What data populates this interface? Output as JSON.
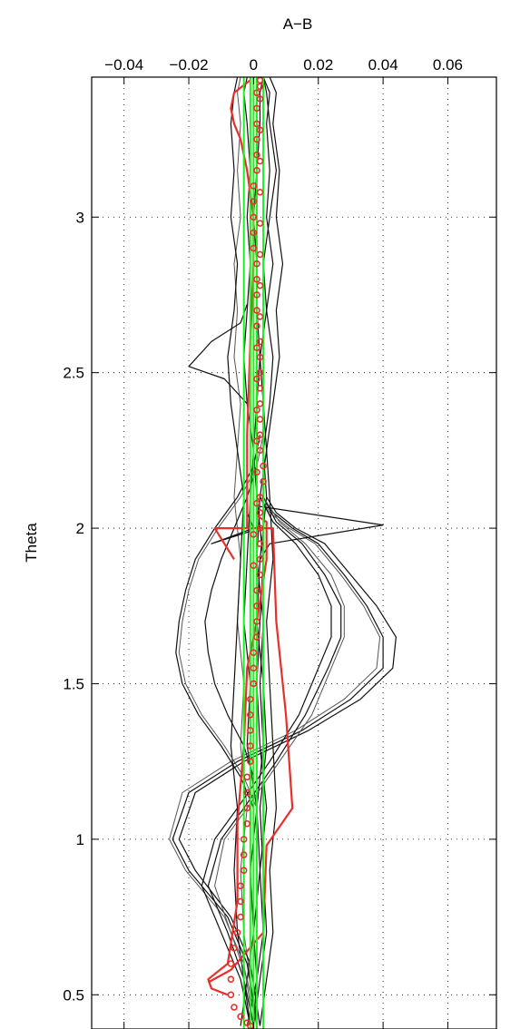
{
  "chart_data": {
    "type": "line",
    "title": "",
    "xlabel": "A−B",
    "ylabel": "Theta",
    "xlim": [
      -0.05,
      0.075
    ],
    "ylim": [
      0.39,
      3.45
    ],
    "x_ticks": [
      -0.04,
      -0.02,
      0,
      0.02,
      0.04,
      0.06
    ],
    "x_tick_labels": [
      "−0.04",
      "−0.02",
      "0",
      "0.02",
      "0.04",
      "0.06"
    ],
    "y_ticks": [
      0.5,
      1,
      1.5,
      2,
      2.5,
      3
    ],
    "y_tick_labels": [
      "0.5",
      "1",
      "1.5",
      "2",
      "2.5",
      "3"
    ],
    "x_axis_position": "top",
    "grid": true,
    "legend": "none",
    "colors": {
      "ensemble_dark": "#111111",
      "ensemble_grey": "#555555",
      "red": "#e8302a",
      "green": "#22ee22"
    },
    "series": [
      {
        "group": "ensemble",
        "color": "#111111",
        "x": [
          -0.002,
          0.001,
          0.003,
          0.002,
          0.004,
          0.002,
          0.001,
          0.002,
          0.003,
          0.001,
          0.0,
          0.001,
          0.002,
          0.001,
          0.001,
          0.0,
          0.001,
          0.002,
          0.002,
          0.003
        ],
        "y": [
          0.4,
          0.55,
          0.7,
          0.9,
          1.1,
          1.3,
          1.5,
          1.7,
          1.9,
          2.1,
          2.25,
          2.4,
          2.55,
          2.7,
          2.85,
          3.0,
          3.15,
          3.3,
          3.4,
          3.45
        ]
      },
      {
        "group": "ensemble",
        "color": "#111111",
        "x": [
          -0.004,
          -0.002,
          0.0,
          -0.001,
          0.001,
          -0.002,
          -0.001,
          -0.003,
          -0.002,
          -0.001,
          0.0,
          -0.002,
          -0.003,
          -0.002,
          -0.001,
          -0.002,
          -0.001,
          -0.002,
          -0.003,
          -0.002
        ],
        "y": [
          0.4,
          0.55,
          0.7,
          0.9,
          1.1,
          1.3,
          1.5,
          1.7,
          1.9,
          2.1,
          2.25,
          2.4,
          2.55,
          2.7,
          2.85,
          3.0,
          3.15,
          3.3,
          3.4,
          3.45
        ]
      },
      {
        "group": "ensemble",
        "color": "#111111",
        "x": [
          0.0,
          0.002,
          0.004,
          0.003,
          0.002,
          0.004,
          0.003,
          0.001,
          0.002,
          0.004,
          0.003,
          0.005,
          0.006,
          0.004,
          0.006,
          0.004,
          0.005,
          0.004,
          0.005,
          0.003
        ],
        "y": [
          0.4,
          0.55,
          0.7,
          0.9,
          1.1,
          1.3,
          1.5,
          1.7,
          1.9,
          2.1,
          2.25,
          2.4,
          2.55,
          2.7,
          2.85,
          3.0,
          3.15,
          3.3,
          3.4,
          3.45
        ]
      },
      {
        "group": "ensemble",
        "color": "#555555",
        "x": [
          0.001,
          -0.001,
          -0.003,
          -0.004,
          -0.002,
          -0.004,
          -0.003,
          -0.005,
          -0.004,
          -0.006,
          -0.005,
          -0.004,
          -0.006,
          -0.005,
          -0.006,
          -0.004,
          -0.005,
          -0.004,
          -0.005,
          -0.004
        ],
        "y": [
          0.4,
          0.55,
          0.7,
          0.9,
          1.1,
          1.3,
          1.5,
          1.7,
          1.9,
          2.1,
          2.25,
          2.4,
          2.55,
          2.7,
          2.85,
          3.0,
          3.15,
          3.3,
          3.4,
          3.45
        ]
      },
      {
        "group": "ensemble",
        "color": "#111111",
        "x": [
          0.002,
          0.004,
          0.006,
          0.005,
          0.007,
          0.006,
          0.005,
          0.004,
          0.006,
          0.005,
          0.004,
          0.006,
          0.008,
          0.007,
          0.009,
          0.007,
          0.008,
          0.006,
          0.007,
          0.005
        ],
        "y": [
          0.4,
          0.55,
          0.7,
          0.9,
          1.1,
          1.3,
          1.5,
          1.7,
          1.9,
          2.1,
          2.25,
          2.4,
          2.55,
          2.7,
          2.85,
          3.0,
          3.15,
          3.3,
          3.4,
          3.45
        ]
      },
      {
        "group": "ensemble",
        "color": "#111111",
        "x": [
          -0.001,
          -0.003,
          -0.005,
          -0.006,
          -0.005,
          -0.007,
          -0.006,
          -0.005,
          -0.004,
          -0.003,
          -0.005,
          -0.007,
          -0.008,
          -0.006,
          -0.005,
          -0.007,
          -0.006,
          -0.007,
          -0.006,
          -0.005
        ],
        "y": [
          0.4,
          0.55,
          0.7,
          0.9,
          1.1,
          1.3,
          1.5,
          1.7,
          1.9,
          2.1,
          2.25,
          2.4,
          2.55,
          2.7,
          2.85,
          3.0,
          3.15,
          3.3,
          3.4,
          3.45
        ]
      },
      {
        "group": "ensemble",
        "color": "#111111",
        "x": [
          0.0,
          0.001,
          0.0,
          0.002,
          0.001,
          0.003,
          0.002,
          0.003,
          0.001,
          0.002,
          0.004,
          0.003,
          0.002,
          0.004,
          0.003,
          0.005,
          0.007,
          0.005,
          0.004,
          0.003
        ],
        "y": [
          0.4,
          0.55,
          0.7,
          0.9,
          1.1,
          1.3,
          1.5,
          1.7,
          1.9,
          2.1,
          2.25,
          2.4,
          2.55,
          2.7,
          2.85,
          3.0,
          3.15,
          3.3,
          3.4,
          3.45
        ]
      },
      {
        "group": "wave",
        "color": "#111111",
        "x": [
          0.001,
          -0.002,
          -0.008,
          -0.02,
          -0.025,
          -0.02,
          -0.005,
          0.015,
          0.03,
          0.04,
          0.04,
          0.035,
          0.028,
          0.02,
          0.012,
          0.006,
          0.003
        ],
        "y": [
          0.4,
          0.6,
          0.75,
          0.9,
          1.0,
          1.15,
          1.25,
          1.35,
          1.45,
          1.55,
          1.65,
          1.75,
          1.85,
          1.95,
          2.0,
          2.05,
          2.1
        ]
      },
      {
        "group": "wave",
        "color": "#111111",
        "x": [
          0.002,
          -0.001,
          -0.007,
          -0.018,
          -0.023,
          -0.018,
          -0.003,
          0.017,
          0.033,
          0.043,
          0.044,
          0.038,
          0.03,
          0.022,
          0.013,
          0.007,
          0.004
        ],
        "y": [
          0.4,
          0.6,
          0.75,
          0.9,
          1.0,
          1.15,
          1.25,
          1.35,
          1.45,
          1.55,
          1.65,
          1.75,
          1.85,
          1.95,
          2.0,
          2.05,
          2.1
        ]
      },
      {
        "group": "wave",
        "color": "#555555",
        "x": [
          0.0,
          -0.003,
          -0.009,
          -0.021,
          -0.026,
          -0.022,
          -0.007,
          0.013,
          0.028,
          0.038,
          0.039,
          0.034,
          0.027,
          0.019,
          0.011,
          0.005,
          0.002
        ],
        "y": [
          0.4,
          0.6,
          0.75,
          0.9,
          1.0,
          1.15,
          1.25,
          1.35,
          1.45,
          1.55,
          1.65,
          1.75,
          1.85,
          1.95,
          2.0,
          2.05,
          2.1
        ]
      },
      {
        "group": "wave",
        "color": "#111111",
        "x": [
          -0.001,
          -0.004,
          -0.01,
          -0.016,
          -0.012,
          -0.005,
          0.005,
          0.014,
          0.02,
          0.024,
          0.024,
          0.02,
          0.013,
          0.006,
          0.002
        ],
        "y": [
          0.4,
          0.55,
          0.7,
          0.85,
          1.0,
          1.1,
          1.25,
          1.4,
          1.55,
          1.65,
          1.75,
          1.85,
          1.95,
          2.02,
          2.1
        ]
      },
      {
        "group": "wave",
        "color": "#111111",
        "x": [
          0.0,
          -0.003,
          -0.008,
          -0.014,
          -0.01,
          -0.003,
          0.007,
          0.016,
          0.023,
          0.027,
          0.027,
          0.022,
          0.015,
          0.007,
          0.003
        ],
        "y": [
          0.4,
          0.55,
          0.7,
          0.85,
          1.0,
          1.1,
          1.25,
          1.4,
          1.55,
          1.65,
          1.75,
          1.85,
          1.95,
          2.02,
          2.1
        ]
      },
      {
        "group": "wave",
        "color": "#555555",
        "x": [
          0.001,
          -0.002,
          -0.007,
          -0.012,
          -0.009,
          -0.002,
          0.008,
          0.018,
          0.024,
          0.028,
          0.028,
          0.024,
          0.016,
          0.008,
          0.003
        ],
        "y": [
          0.4,
          0.55,
          0.7,
          0.85,
          1.0,
          1.1,
          1.25,
          1.4,
          1.55,
          1.65,
          1.75,
          1.85,
          1.95,
          2.02,
          2.1
        ]
      },
      {
        "group": "wave",
        "color": "#111111",
        "x": [
          0.0,
          -0.004,
          -0.01,
          -0.017,
          -0.022,
          -0.024,
          -0.023,
          -0.021,
          -0.018,
          -0.012,
          -0.005,
          0.0,
          0.002
        ],
        "y": [
          1.1,
          1.2,
          1.3,
          1.4,
          1.5,
          1.6,
          1.7,
          1.8,
          1.9,
          2.0,
          2.1,
          2.2,
          2.3
        ]
      },
      {
        "group": "wave",
        "color": "#555555",
        "x": [
          0.001,
          -0.003,
          -0.009,
          -0.016,
          -0.021,
          -0.023,
          -0.022,
          -0.02,
          -0.017,
          -0.011,
          -0.004,
          0.001,
          0.003
        ],
        "y": [
          1.1,
          1.2,
          1.3,
          1.4,
          1.5,
          1.6,
          1.7,
          1.8,
          1.9,
          2.0,
          2.1,
          2.2,
          2.3
        ]
      },
      {
        "group": "wave",
        "color": "#111111",
        "x": [
          0.0,
          -0.003,
          -0.008,
          -0.012,
          -0.014,
          -0.015,
          -0.013,
          -0.01,
          -0.006,
          -0.002,
          0.001
        ],
        "y": [
          1.2,
          1.3,
          1.4,
          1.5,
          1.6,
          1.7,
          1.8,
          1.9,
          2.0,
          2.1,
          2.2
        ]
      },
      {
        "group": "spike",
        "color": "#111111",
        "x": [
          0.002,
          0.04,
          0.005,
          0.002
        ],
        "y": [
          2.07,
          2.01,
          1.95,
          1.9
        ]
      },
      {
        "group": "spike",
        "color": "#111111",
        "x": [
          -0.001,
          -0.013,
          0.0,
          -0.002
        ],
        "y": [
          1.99,
          1.95,
          2.0,
          2.05
        ]
      },
      {
        "group": "spike",
        "color": "#111111",
        "x": [
          -0.002,
          -0.009,
          -0.02,
          -0.013,
          -0.004,
          -0.002
        ],
        "y": [
          2.4,
          2.48,
          2.52,
          2.6,
          2.66,
          2.72
        ]
      },
      {
        "group": "red",
        "color": "#e8302a",
        "x": [
          -0.008,
          -0.013,
          -0.014,
          -0.008,
          -0.005,
          -0.005,
          -0.003,
          -0.002,
          0.001,
          0.004,
          0.004,
          0.001
        ],
        "y": [
          0.5,
          0.52,
          0.55,
          0.6,
          0.8,
          1.05,
          1.3,
          1.55,
          1.7,
          1.9,
          2.02,
          2.04
        ]
      },
      {
        "group": "red",
        "color": "#e8302a",
        "x": [
          -0.002,
          -0.002,
          -0.001,
          0.0,
          0.0,
          -0.002,
          -0.004,
          -0.006,
          -0.007,
          -0.006,
          -0.001
        ],
        "y": [
          2.0,
          2.3,
          2.6,
          2.85,
          3.0,
          3.15,
          3.25,
          3.3,
          3.35,
          3.4,
          3.44
        ]
      },
      {
        "group": "red",
        "color": "#e8302a",
        "x": [
          -0.014,
          -0.007,
          0.003,
          0.004,
          0.012,
          0.01,
          0.007,
          0.006,
          -0.012,
          -0.006
        ],
        "y": [
          0.54,
          0.58,
          0.7,
          0.98,
          1.1,
          1.4,
          1.7,
          2.0,
          2.0,
          1.9
        ]
      }
    ],
    "markers": {
      "shape": "circle",
      "color": "#e8302a",
      "x": [
        -0.001,
        -0.002,
        -0.004,
        -0.006,
        -0.007,
        -0.007,
        -0.007,
        -0.006,
        -0.005,
        -0.004,
        -0.004,
        -0.004,
        -0.003,
        -0.003,
        -0.003,
        -0.002,
        -0.002,
        -0.002,
        -0.002,
        -0.001,
        -0.001,
        -0.001,
        -0.001,
        -0.001,
        0.0,
        0.0,
        0.0,
        0.001,
        0.001,
        0.001,
        0.001,
        0.002,
        0.002,
        0.002,
        0.002,
        0.002,
        0.002,
        0.003,
        0.003,
        0.002,
        0.002,
        0.002,
        0.002,
        0.002,
        0.002,
        0.002,
        0.002,
        0.001,
        0.001,
        0.001,
        0.001,
        0.001,
        0.0,
        0.0,
        0.0,
        0.0,
        0.0,
        0.001,
        0.001,
        0.001,
        0.001,
        0.001,
        0.001,
        0.002,
        0.002,
        0.002,
        0.002,
        0.002,
        0.002,
        0.002,
        0.002,
        0.002,
        0.002,
        0.001,
        0.001,
        0.001,
        0.001,
        0.001,
        0.001,
        0.0,
        0.0
      ],
      "y": [
        0.4,
        0.41,
        0.43,
        0.46,
        0.5,
        0.55,
        0.6,
        0.65,
        0.7,
        0.75,
        0.8,
        0.85,
        0.9,
        0.95,
        1.0,
        1.05,
        1.1,
        1.15,
        1.2,
        1.25,
        1.3,
        1.35,
        1.4,
        1.45,
        1.5,
        1.55,
        1.6,
        1.65,
        1.7,
        1.75,
        1.8,
        1.85,
        1.9,
        1.95,
        2.0,
        2.05,
        2.1,
        2.15,
        2.2,
        2.25,
        2.3,
        2.35,
        2.4,
        2.45,
        2.5,
        2.55,
        2.6,
        2.65,
        2.7,
        2.75,
        2.8,
        2.85,
        2.9,
        2.95,
        3.0,
        3.05,
        3.1,
        3.15,
        3.2,
        3.25,
        3.3,
        3.35,
        3.4,
        3.42,
        3.44,
        3.38,
        3.28,
        3.18,
        3.08,
        2.98,
        2.88,
        2.78,
        2.68,
        2.58,
        2.48,
        2.38,
        2.28,
        2.18,
        2.08,
        1.98,
        1.88
      ]
    },
    "vertical_lines": {
      "color": "#22ee22",
      "x": [
        -0.003,
        -0.001,
        0.0,
        0.001,
        0.003
      ]
    }
  }
}
